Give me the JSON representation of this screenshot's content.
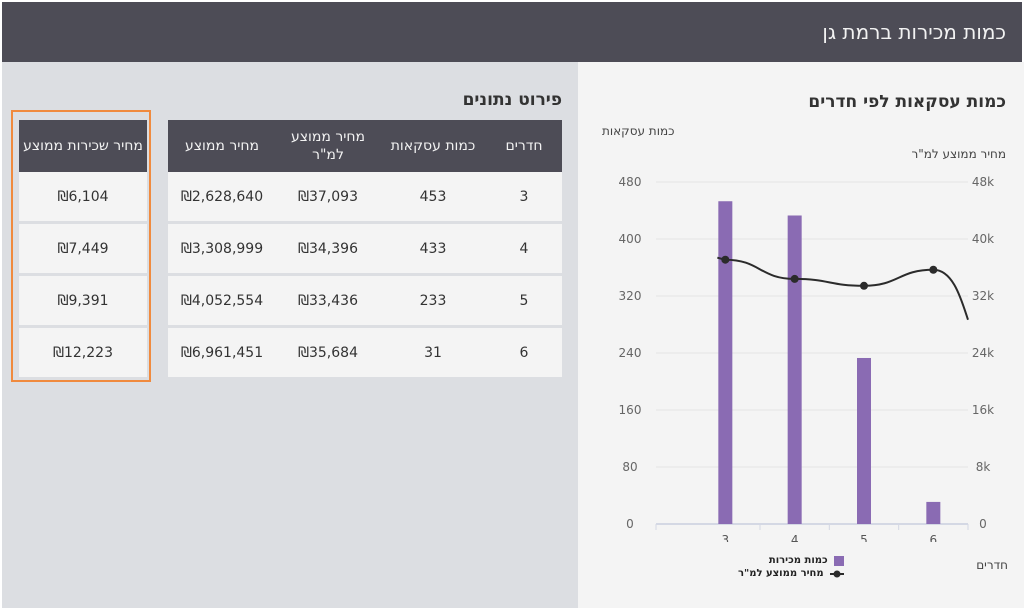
{
  "header": {
    "title": "כמות מכירות ברמת גן"
  },
  "table_section": {
    "title": "פירוט נתונים",
    "columns": [
      "חדרים",
      "כמות עסקאות",
      "מחיר ממוצע למ\"ר",
      "מחיר ממוצע"
    ],
    "rows": [
      [
        "3",
        "453",
        "₪37,093",
        "₪2,628,640"
      ],
      [
        "4",
        "433",
        "₪34,396",
        "₪3,308,999"
      ],
      [
        "5",
        "233",
        "₪33,436",
        "₪4,052,554"
      ],
      [
        "6",
        "31",
        "₪35,684",
        "₪6,961,451"
      ]
    ],
    "rent_column": {
      "header": "מחיר שכירות ממוצע",
      "values": [
        "₪6,104",
        "₪7,449",
        "₪9,391",
        "₪12,223"
      ],
      "highlight_color": "#f08a3e"
    }
  },
  "chart_section": {
    "title": "כמות עסקאות לפי חדרים"
  },
  "chart_data": {
    "type": "bar",
    "title": "כמות עסקאות לפי חדרים",
    "categories": [
      "3",
      "4",
      "5",
      "6"
    ],
    "xlabel": "חדרים",
    "ylabel": "כמות עסקאות",
    "y2label": "מחיר ממוצע למ\"ר",
    "ylim": [
      0,
      480
    ],
    "y2lim": [
      0,
      48000
    ],
    "yticks": [
      "0",
      "80",
      "160",
      "240",
      "320",
      "400",
      "480"
    ],
    "y2ticks": [
      "0",
      "8k",
      "16k",
      "24k",
      "32k",
      "40k",
      "48k"
    ],
    "grid": true,
    "series": [
      {
        "name": "כמות מכירות",
        "type": "bar",
        "axis": "left",
        "color": "#8a6bb3",
        "values": [
          453,
          433,
          233,
          31
        ]
      },
      {
        "name": "מחיר ממוצע למ\"ר",
        "type": "line",
        "axis": "right",
        "color": "#2b2b2b",
        "values": [
          37093,
          34396,
          33436,
          35684
        ]
      }
    ],
    "legend_position": "bottom"
  }
}
